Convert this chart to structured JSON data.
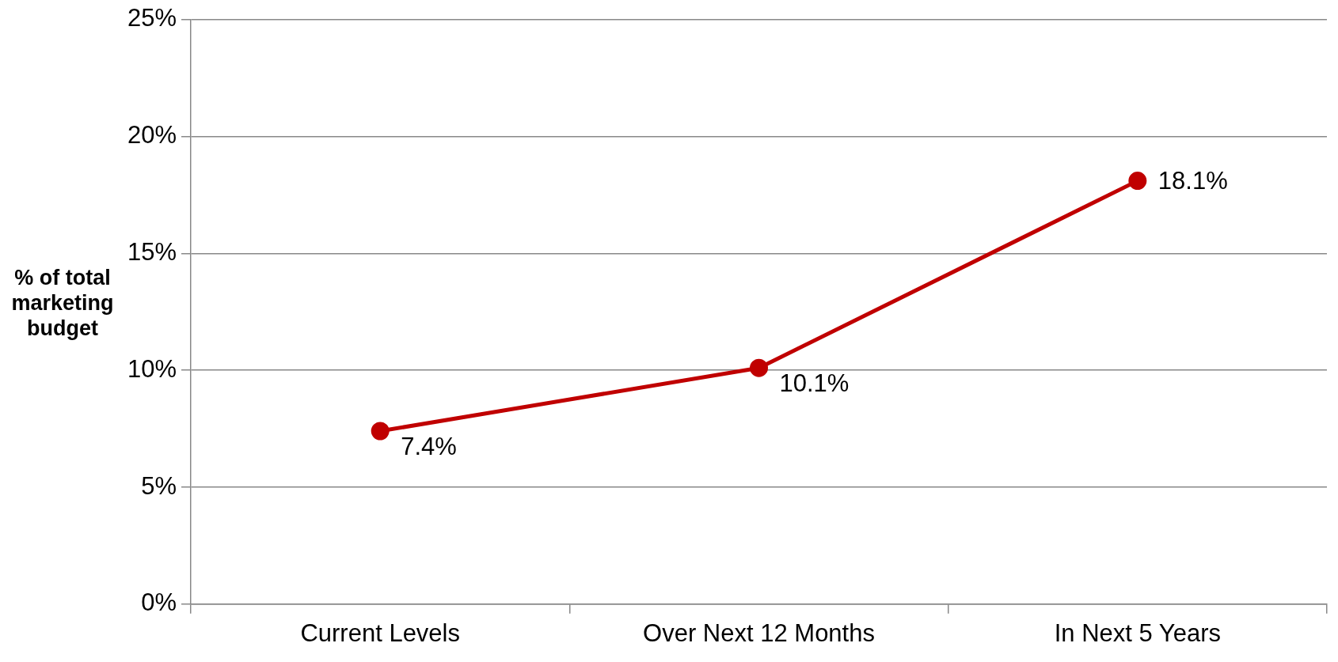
{
  "chart_data": {
    "type": "line",
    "ylabel": "% of total marketing budget",
    "categories": [
      "Current Levels",
      "Over Next 12 Months",
      "In Next 5 Years"
    ],
    "series": [
      {
        "color": "#c00000",
        "values": [
          7.4,
          10.1,
          18.1
        ],
        "value_labels": [
          "7.4%",
          "10.1%",
          "18.1%"
        ]
      }
    ],
    "ylim": [
      0,
      25
    ],
    "yticks": [
      {
        "value": 0,
        "label": "0%"
      },
      {
        "value": 5,
        "label": "5%"
      },
      {
        "value": 10,
        "label": "10%"
      },
      {
        "value": 15,
        "label": "15%"
      },
      {
        "value": 20,
        "label": "20%"
      },
      {
        "value": 25,
        "label": "25%"
      }
    ],
    "grid": "y",
    "legend": false,
    "marker": "circle",
    "line_style": "solid"
  }
}
